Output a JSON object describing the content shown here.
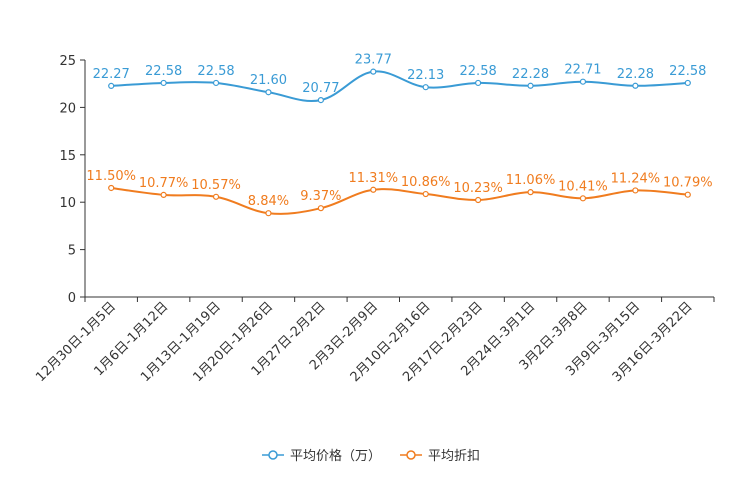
{
  "chart_data": {
    "type": "line",
    "categories": [
      "12月30日-1月5日",
      "1月6日-1月12日",
      "1月13日-1月19日",
      "1月20日-1月26日",
      "1月27日-2月2日",
      "2月3日-2月9日",
      "2月10日-2月16日",
      "2月17日-2月23日",
      "2月24日-3月1日",
      "3月2日-3月8日",
      "3月9日-3月15日",
      "3月16日-3月22日"
    ],
    "ylim": [
      0,
      25
    ],
    "yticks": [
      "0",
      "5",
      "10",
      "15",
      "20",
      "25"
    ],
    "series": [
      {
        "name": "平均价格（万）",
        "color": "#3a9bd5",
        "values": [
          22.27,
          22.58,
          22.58,
          21.6,
          20.77,
          23.77,
          22.13,
          22.58,
          22.28,
          22.71,
          22.28,
          22.58
        ],
        "labels": [
          "22.27",
          "22.58",
          "22.58",
          "21.60",
          "20.77",
          "23.77",
          "22.13",
          "22.58",
          "22.28",
          "22.71",
          "22.28",
          "22.58"
        ]
      },
      {
        "name": "平均折扣",
        "color": "#f07c1f",
        "values": [
          11.5,
          10.77,
          10.57,
          8.84,
          9.37,
          11.31,
          10.86,
          10.23,
          11.06,
          10.41,
          11.24,
          10.79
        ],
        "labels": [
          "11.50%",
          "10.77%",
          "10.57%",
          "8.84%",
          "9.37%",
          "11.31%",
          "10.86%",
          "10.23%",
          "11.06%",
          "10.41%",
          "11.24%",
          "10.79%"
        ]
      }
    ],
    "legend_position": "bottom-center"
  }
}
